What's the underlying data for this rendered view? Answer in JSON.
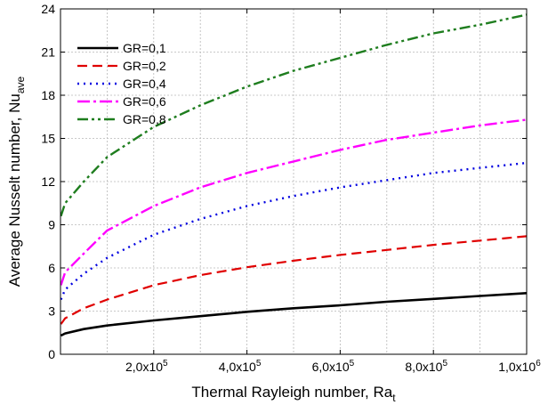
{
  "chart_data": {
    "type": "line",
    "xlabel": "Thermal Rayleigh number, Ra",
    "xlabel_sub": "t",
    "ylabel": "Average Nusselt number, Nu",
    "ylabel_sub": "ave",
    "xlim": [
      0,
      1000000
    ],
    "ylim": [
      0,
      24
    ],
    "grid": true,
    "legend_position": "top-left",
    "x_ticks": [
      {
        "value": 200000,
        "mantissa": "2,0x10",
        "exp": "5"
      },
      {
        "value": 400000,
        "mantissa": "4,0x10",
        "exp": "5"
      },
      {
        "value": 600000,
        "mantissa": "6,0x10",
        "exp": "5"
      },
      {
        "value": 800000,
        "mantissa": "8,0x10",
        "exp": "5"
      },
      {
        "value": 1000000,
        "mantissa": "1,0x10",
        "exp": "6"
      }
    ],
    "y_ticks": [
      {
        "value": 0,
        "label": "0"
      },
      {
        "value": 3,
        "label": "3"
      },
      {
        "value": 6,
        "label": "6"
      },
      {
        "value": 9,
        "label": "9"
      },
      {
        "value": 12,
        "label": "12"
      },
      {
        "value": 15,
        "label": "15"
      },
      {
        "value": 18,
        "label": "18"
      },
      {
        "value": 21,
        "label": "21"
      },
      {
        "value": 24,
        "label": "24"
      }
    ],
    "x": [
      1000,
      10000,
      50000,
      100000,
      200000,
      300000,
      400000,
      500000,
      600000,
      700000,
      800000,
      900000,
      1000000
    ],
    "series": [
      {
        "name": "GR=0,1",
        "color": "#000000",
        "dash": "solid",
        "values": [
          1.3,
          1.45,
          1.75,
          2.0,
          2.35,
          2.65,
          2.95,
          3.2,
          3.4,
          3.65,
          3.85,
          4.05,
          4.25
        ]
      },
      {
        "name": "GR=0,2",
        "color": "#e00000",
        "dash": "dash",
        "values": [
          2.1,
          2.5,
          3.2,
          3.8,
          4.8,
          5.5,
          6.05,
          6.5,
          6.9,
          7.25,
          7.6,
          7.9,
          8.2
        ]
      },
      {
        "name": "GR=0,4",
        "color": "#0000e0",
        "dash": "dot",
        "values": [
          3.8,
          4.5,
          5.6,
          6.7,
          8.3,
          9.4,
          10.3,
          11.0,
          11.6,
          12.1,
          12.6,
          12.95,
          13.3
        ]
      },
      {
        "name": "GR=0,6",
        "color": "#ff00ff",
        "dash": "dashdot",
        "values": [
          4.8,
          5.7,
          7.0,
          8.6,
          10.3,
          11.6,
          12.6,
          13.4,
          14.2,
          14.9,
          15.4,
          15.9,
          16.3
        ]
      },
      {
        "name": "GR=0,8",
        "color": "#1e7d1e",
        "dash": "dashdotdot",
        "values": [
          9.6,
          10.5,
          12.0,
          13.7,
          15.8,
          17.3,
          18.6,
          19.7,
          20.6,
          21.5,
          22.3,
          22.9,
          23.6
        ]
      }
    ]
  }
}
